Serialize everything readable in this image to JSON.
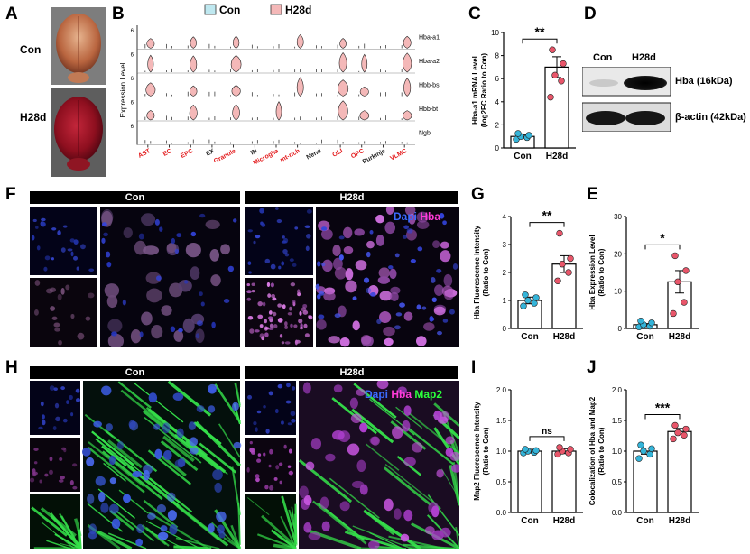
{
  "panels": {
    "A": {
      "label": "A",
      "row_labels": [
        "Con",
        "H28d"
      ]
    },
    "B": {
      "label": "B",
      "legend": [
        {
          "name": "Con",
          "color": "#bfe8f0"
        },
        {
          "name": "H28d",
          "color": "#f4b8b8"
        }
      ],
      "ylabel": "Expression Level",
      "genes": [
        "Hba-a1",
        "Hba-a2",
        "Hbb-bs",
        "Hbb-bt",
        "Ngb"
      ],
      "cell_types": [
        {
          "name": "AST",
          "color": "#e31a1c"
        },
        {
          "name": "EC",
          "color": "#e31a1c"
        },
        {
          "name": "EPC",
          "color": "#e31a1c"
        },
        {
          "name": "EX",
          "color": "#222222"
        },
        {
          "name": "Granule",
          "color": "#e31a1c"
        },
        {
          "name": "IN",
          "color": "#222222"
        },
        {
          "name": "Microglia",
          "color": "#e31a1c"
        },
        {
          "name": "mt-rich",
          "color": "#e31a1c"
        },
        {
          "name": "Nend",
          "color": "#222222"
        },
        {
          "name": "OLI",
          "color": "#e31a1c"
        },
        {
          "name": "OPC",
          "color": "#e31a1c"
        },
        {
          "name": "Purkinje",
          "color": "#222222"
        },
        {
          "name": "VLMC",
          "color": "#e31a1c"
        }
      ],
      "ytick": "6"
    },
    "C": {
      "label": "C"
    },
    "D": {
      "label": "D",
      "lanes": [
        "Con",
        "H28d"
      ],
      "bands": [
        "Hba (16kDa)",
        "β-actin (42kDa)"
      ]
    },
    "F": {
      "label": "F",
      "headers": [
        "Con",
        "H28d"
      ],
      "stain": [
        {
          "text": "Dapi",
          "color": "#3b6bff"
        },
        {
          "text": "Hba",
          "color": "#ff3bd8"
        }
      ]
    },
    "G": {
      "label": "G"
    },
    "E": {
      "label": "E"
    },
    "H": {
      "label": "H",
      "headers": [
        "Con",
        "H28d"
      ],
      "stain": [
        {
          "text": "Dapi",
          "color": "#3b6bff"
        },
        {
          "text": "Hba",
          "color": "#ff3bd8"
        },
        {
          "text": "Map2",
          "color": "#2bff3b"
        }
      ]
    },
    "I": {
      "label": "I"
    },
    "J": {
      "label": "J"
    }
  },
  "chart_data": [
    {
      "id": "C",
      "type": "bar",
      "categories": [
        "Con",
        "H28d"
      ],
      "values": [
        1.0,
        7.0
      ],
      "errors": [
        0.15,
        0.9
      ],
      "points": [
        [
          0.75,
          0.9,
          1.0,
          1.1,
          1.25
        ],
        [
          4.4,
          5.8,
          6.3,
          7.3,
          8.5
        ]
      ],
      "ylabel_lines": [
        "Hba-a1 mRNA Level",
        "(log2FC Ratio to Con)"
      ],
      "ylim": [
        0,
        10
      ],
      "yticks": [
        0,
        2,
        4,
        6,
        8,
        10
      ],
      "significance": "**"
    },
    {
      "id": "G",
      "type": "bar",
      "categories": [
        "Con",
        "H28d"
      ],
      "values": [
        1.0,
        2.3
      ],
      "errors": [
        0.12,
        0.3
      ],
      "points": [
        [
          0.8,
          0.9,
          1.0,
          1.1,
          1.2
        ],
        [
          1.7,
          2.0,
          2.3,
          2.5,
          3.4
        ]
      ],
      "ylabel_lines": [
        "Hba Fluorescence Intensity",
        "(Ratio to Con)"
      ],
      "ylim": [
        0,
        4
      ],
      "yticks": [
        0,
        1,
        2,
        3,
        4
      ],
      "significance": "**"
    },
    {
      "id": "E",
      "type": "bar",
      "categories": [
        "Con",
        "H28d"
      ],
      "values": [
        1.0,
        12.5
      ],
      "errors": [
        0.3,
        3.0
      ],
      "points": [
        [
          0.4,
          0.6,
          1.0,
          1.5,
          2.0
        ],
        [
          4.0,
          7.0,
          12.5,
          15.5,
          19.5
        ]
      ],
      "ylabel_lines": [
        "Hba Expression Level",
        "(Ratio to Con)"
      ],
      "ylim": [
        0,
        30
      ],
      "yticks": [
        0,
        10,
        20,
        30
      ],
      "significance": "*"
    },
    {
      "id": "I",
      "type": "bar",
      "categories": [
        "Con",
        "H28d"
      ],
      "values": [
        1.0,
        1.0
      ],
      "errors": [
        0.03,
        0.04
      ],
      "points": [
        [
          0.97,
          0.98,
          1.0,
          1.01,
          1.03
        ],
        [
          0.95,
          0.97,
          1.0,
          1.03,
          1.06
        ]
      ],
      "ylabel_lines": [
        "Map2 Fluorescence Intensity",
        "(Ratio to Con)"
      ],
      "ylim": [
        0,
        2.0
      ],
      "yticks": [
        0.0,
        0.5,
        1.0,
        1.5,
        2.0
      ],
      "significance": "ns"
    },
    {
      "id": "J",
      "type": "bar",
      "categories": [
        "Con",
        "H28d"
      ],
      "values": [
        1.0,
        1.32
      ],
      "errors": [
        0.05,
        0.05
      ],
      "points": [
        [
          0.88,
          0.95,
          1.0,
          1.04,
          1.1
        ],
        [
          1.2,
          1.26,
          1.3,
          1.36,
          1.42
        ]
      ],
      "ylabel_lines": [
        "Colocalization of Hba and Map2",
        "(Ratio to Con)"
      ],
      "ylim": [
        0,
        2.0
      ],
      "yticks": [
        0.0,
        0.5,
        1.0,
        1.5,
        2.0
      ],
      "significance": "***"
    }
  ]
}
